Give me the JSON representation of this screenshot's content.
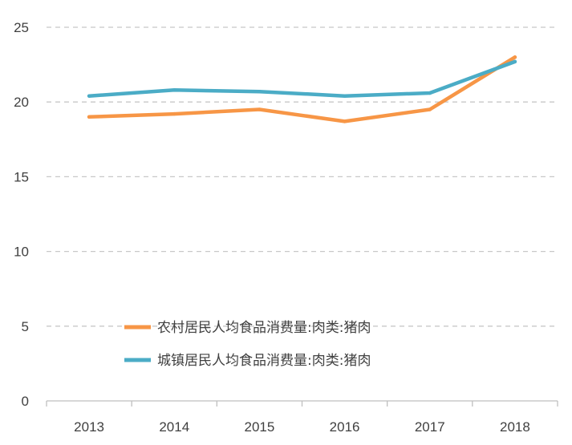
{
  "chart_data": {
    "type": "line",
    "x": [
      "2013",
      "2014",
      "2015",
      "2016",
      "2017",
      "2018"
    ],
    "ylim": [
      0,
      25
    ],
    "yticks": [
      0,
      5,
      10,
      15,
      20,
      25
    ],
    "grid": true,
    "legend_position": "lower-center",
    "series": [
      {
        "name": "农村居民人均食品消费量:肉类:猪肉",
        "values": [
          19.0,
          19.2,
          19.5,
          18.7,
          19.5,
          23.0
        ],
        "color": "#F79646"
      },
      {
        "name": "城镇居民人均食品消费量:肉类:猪肉",
        "values": [
          20.4,
          20.8,
          20.7,
          20.4,
          20.6,
          22.7
        ],
        "color": "#4BACC6"
      }
    ]
  }
}
